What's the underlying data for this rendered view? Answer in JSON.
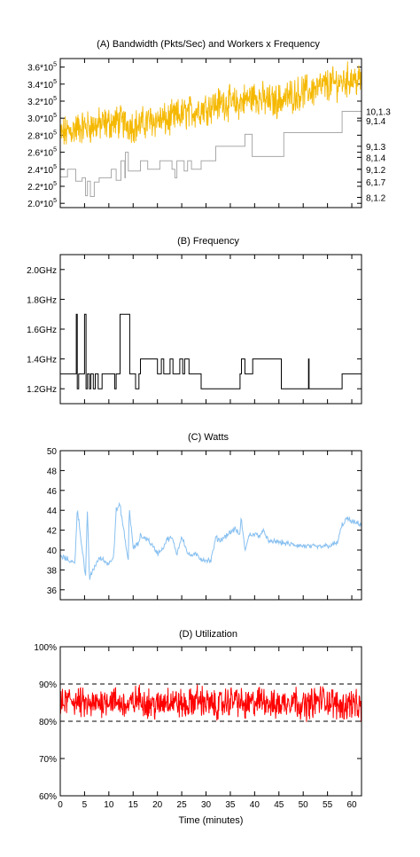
{
  "figure": {
    "xlabel": "Time (minutes)"
  },
  "chart_data": [
    {
      "type": "line",
      "title": "(A) Bandwidth (Pkts/Sec) and Workers x Frequency",
      "xlim": [
        0,
        62
      ],
      "ylim": [
        195000,
        370000
      ],
      "y_ticks": [
        {
          "value": 360000,
          "label": "3.6*10^5"
        },
        {
          "value": 340000,
          "label": "3.4*10^5"
        },
        {
          "value": 320000,
          "label": "3.2*10^5"
        },
        {
          "value": 300000,
          "label": "3.0*10^5"
        },
        {
          "value": 280000,
          "label": "2.8*10^5"
        },
        {
          "value": 260000,
          "label": "2.6*10^5"
        },
        {
          "value": 240000,
          "label": "2.4*10^5"
        },
        {
          "value": 220000,
          "label": "2.2*10^5"
        },
        {
          "value": 200000,
          "label": "2.0*10^5"
        }
      ],
      "y2_ticks": [
        {
          "label": "10,1.3",
          "level": 308000
        },
        {
          "label": "9,1.4",
          "level": 297000
        },
        {
          "label": "9,1.3",
          "level": 267000
        },
        {
          "label": "8,1.4",
          "level": 254000
        },
        {
          "label": "9,1.2",
          "level": 240000
        },
        {
          "label": "6,1.7",
          "level": 225000
        },
        {
          "label": "8,1.2",
          "level": 207000
        }
      ],
      "series": [
        {
          "color": "#f5b800",
          "x": [
            0,
            2,
            4,
            6,
            8,
            10,
            12,
            14,
            16,
            18,
            20,
            22,
            24,
            26,
            28,
            30,
            32,
            34,
            36,
            38,
            40,
            42,
            44,
            46,
            48,
            50,
            52,
            54,
            56,
            58,
            60,
            62
          ],
          "y": [
            280000,
            285000,
            289000,
            290000,
            292000,
            294000,
            296000,
            293000,
            291000,
            296000,
            298000,
            297000,
            302000,
            306000,
            309000,
            313000,
            316000,
            319000,
            316000,
            321000,
            326000,
            321000,
            319000,
            323000,
            327000,
            331000,
            333000,
            337000,
            340000,
            343000,
            347000,
            343000
          ]
        },
        {
          "color": "#a8a8a8",
          "x": [
            0,
            1.5,
            3,
            3.2,
            4.5,
            5.2,
            5.6,
            6.2,
            7,
            8,
            10.5,
            11.5,
            12.5,
            13.3,
            13.4,
            14,
            16.5,
            18,
            20.5,
            23,
            23.6,
            24,
            25.5,
            26.2,
            27,
            29,
            32,
            37,
            38,
            39.5,
            46,
            51,
            58,
            62
          ],
          "y": [
            231000,
            240000,
            240000,
            226000,
            230000,
            209000,
            226000,
            208000,
            225000,
            230000,
            240000,
            227000,
            250000,
            230000,
            260000,
            238000,
            250000,
            240000,
            250000,
            240000,
            230000,
            250000,
            238000,
            250000,
            240000,
            250000,
            267000,
            267000,
            281000,
            255000,
            283000,
            283000,
            308000,
            308000
          ]
        }
      ]
    },
    {
      "type": "line",
      "title": "(B) Frequency",
      "xlim": [
        0,
        62
      ],
      "ylim": [
        1.1,
        2.1
      ],
      "y_ticks": [
        {
          "value": 2.0,
          "label": "2.0GHz"
        },
        {
          "value": 1.8,
          "label": "1.8GHz"
        },
        {
          "value": 1.6,
          "label": "1.6GHz"
        },
        {
          "value": 1.4,
          "label": "1.4GHz"
        },
        {
          "value": 1.2,
          "label": "1.2GHz"
        }
      ],
      "series": [
        {
          "color": "#000000",
          "x": [
            0,
            3,
            3.3,
            3.5,
            3.8,
            4.8,
            5,
            5.3,
            5.6,
            6,
            6.3,
            6.8,
            7.2,
            7.8,
            8.2,
            8.6,
            10.6,
            11.2,
            11.5,
            12.3,
            14,
            14.3,
            15,
            15.5,
            16.2,
            16.5,
            18.5,
            20,
            20.8,
            21.3,
            22.6,
            23.2,
            24.6,
            25.2,
            25.6,
            26.5,
            26.8,
            27.3,
            28,
            29,
            32,
            37,
            37.3,
            38,
            38.3,
            39.6,
            43.5,
            45.5,
            51,
            51.1,
            51.2,
            58,
            62
          ],
          "y": [
            1.3,
            1.3,
            1.7,
            1.2,
            1.3,
            1.3,
            1.7,
            1.2,
            1.3,
            1.2,
            1.3,
            1.2,
            1.3,
            1.2,
            1.2,
            1.3,
            1.3,
            1.2,
            1.3,
            1.7,
            1.7,
            1.3,
            1.3,
            1.2,
            1.3,
            1.4,
            1.4,
            1.3,
            1.4,
            1.3,
            1.4,
            1.3,
            1.4,
            1.3,
            1.4,
            1.3,
            1.3,
            1.3,
            1.3,
            1.2,
            1.2,
            1.3,
            1.4,
            1.3,
            1.3,
            1.4,
            1.4,
            1.2,
            1.2,
            1.4,
            1.2,
            1.3,
            1.3
          ]
        }
      ]
    },
    {
      "type": "line",
      "title": "(C) Watts",
      "xlim": [
        0,
        62
      ],
      "ylim": [
        35,
        50
      ],
      "y_ticks": [
        {
          "value": 50,
          "label": "50"
        },
        {
          "value": 48,
          "label": "48"
        },
        {
          "value": 46,
          "label": "46"
        },
        {
          "value": 44,
          "label": "44"
        },
        {
          "value": 42,
          "label": "42"
        },
        {
          "value": 40,
          "label": "40"
        },
        {
          "value": 38,
          "label": "38"
        },
        {
          "value": 36,
          "label": "36"
        }
      ],
      "series": [
        {
          "color": "#88c0f0",
          "x": [
            0,
            1,
            2.5,
            3,
            3.5,
            4.8,
            5.2,
            5.6,
            6,
            7.5,
            8.2,
            10,
            11,
            11.5,
            12.3,
            14,
            14.2,
            15,
            16,
            16.5,
            18,
            20,
            21,
            22,
            23,
            24,
            25,
            25.5,
            26,
            26.5,
            28,
            29,
            31,
            32,
            33,
            35,
            36,
            37,
            37.2,
            38,
            39,
            41,
            42,
            43,
            44,
            47,
            50,
            53,
            56,
            57,
            58,
            59,
            60,
            62
          ],
          "y": [
            39.3,
            39.2,
            38.8,
            38.6,
            44.2,
            39,
            37.1,
            44.1,
            37.1,
            38.8,
            39.2,
            38.6,
            39.5,
            44,
            44.5,
            38.8,
            44.3,
            40.2,
            40.6,
            41.4,
            41.1,
            39.7,
            40.1,
            41.1,
            41.2,
            39.6,
            41.4,
            40.8,
            39.9,
            39.5,
            39.5,
            39.1,
            38.9,
            41.2,
            41.0,
            41.8,
            42.1,
            41.5,
            43.3,
            40.0,
            41.6,
            41.5,
            41.9,
            40.7,
            40.9,
            40.6,
            40.4,
            40.3,
            40.5,
            40.7,
            42.5,
            43.2,
            42.8,
            42.6
          ]
        }
      ]
    },
    {
      "type": "line",
      "title": "(D) Utilization",
      "xlim": [
        0,
        62
      ],
      "ylim": [
        60,
        100
      ],
      "y_ticks": [
        {
          "value": 100,
          "label": "100%"
        },
        {
          "value": 90,
          "label": "90%"
        },
        {
          "value": 80,
          "label": "80%"
        },
        {
          "value": 70,
          "label": "70%"
        },
        {
          "value": 60,
          "label": "60%"
        }
      ],
      "x_ticks": [
        0,
        5,
        10,
        15,
        20,
        25,
        30,
        35,
        40,
        45,
        50,
        55,
        60
      ],
      "reference_lines": [
        90,
        80
      ],
      "series": [
        {
          "color": "#ff0000",
          "x": [
            0,
            2,
            4,
            6,
            8,
            10,
            12,
            14,
            16,
            18,
            20,
            22,
            24,
            26,
            28,
            30,
            32,
            34,
            36,
            38,
            40,
            42,
            44,
            46,
            48,
            50,
            52,
            54,
            56,
            58,
            60,
            62
          ],
          "y": [
            84,
            86,
            85,
            84,
            85,
            86,
            85,
            84,
            86,
            85,
            84,
            86,
            85,
            84,
            86,
            85,
            84,
            85,
            86,
            84,
            85,
            86,
            84,
            85,
            86,
            84,
            85,
            86,
            85,
            84,
            85,
            83
          ]
        }
      ]
    }
  ]
}
